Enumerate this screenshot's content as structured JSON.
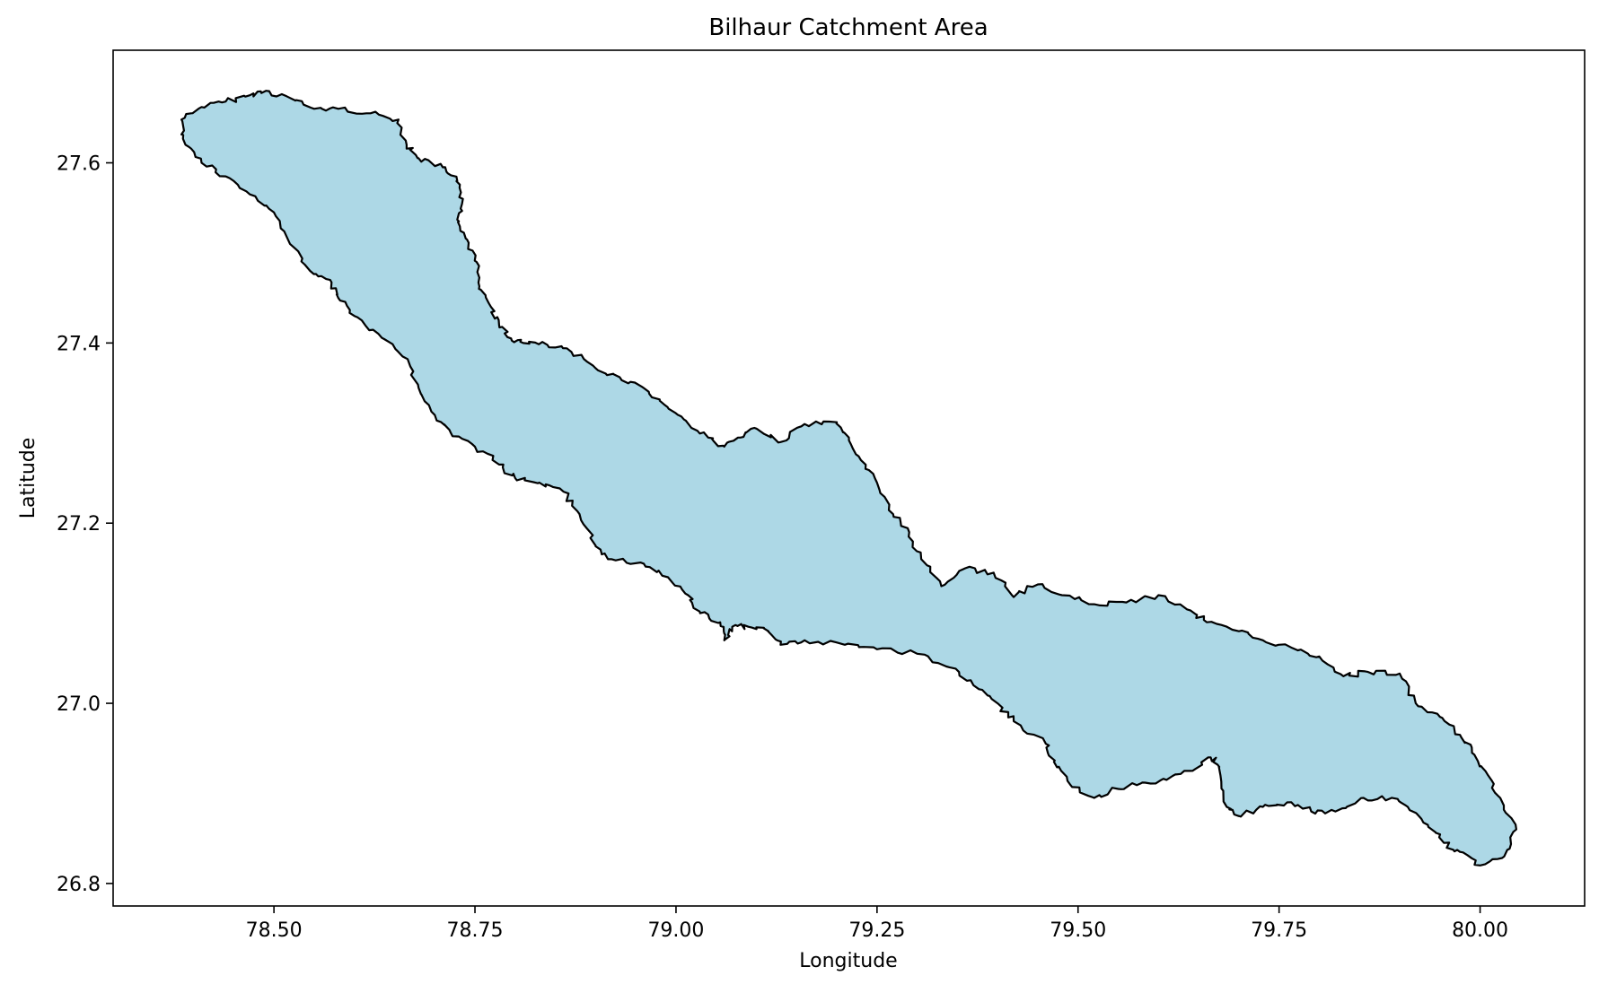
{
  "chart_data": {
    "type": "map",
    "title": "Bilhaur Catchment Area",
    "xlabel": "Longitude",
    "ylabel": "Latitude",
    "xlim": [
      78.3,
      80.13
    ],
    "ylim": [
      26.775,
      27.725
    ],
    "xticks": [
      78.5,
      78.75,
      79.0,
      79.25,
      79.5,
      79.75,
      80.0
    ],
    "xtick_labels": [
      "78.50",
      "78.75",
      "79.00",
      "79.25",
      "79.50",
      "79.75",
      "80.00"
    ],
    "yticks": [
      26.8,
      27.0,
      27.2,
      27.4,
      27.6
    ],
    "ytick_labels": [
      "26.8",
      "27.0",
      "27.2",
      "27.4",
      "27.6"
    ],
    "grid": false,
    "fill_color": "#add8e6",
    "edge_color": "#000000",
    "boundary": [
      [
        78.385,
        27.648
      ],
      [
        78.41,
        27.662
      ],
      [
        78.44,
        27.668
      ],
      [
        78.47,
        27.675
      ],
      [
        78.49,
        27.68
      ],
      [
        78.52,
        27.672
      ],
      [
        78.55,
        27.66
      ],
      [
        78.58,
        27.66
      ],
      [
        78.62,
        27.655
      ],
      [
        78.655,
        27.648
      ],
      [
        78.665,
        27.62
      ],
      [
        78.68,
        27.605
      ],
      [
        78.71,
        27.595
      ],
      [
        78.728,
        27.58
      ],
      [
        78.735,
        27.56
      ],
      [
        78.73,
        27.535
      ],
      [
        78.74,
        27.515
      ],
      [
        78.752,
        27.49
      ],
      [
        78.755,
        27.46
      ],
      [
        78.77,
        27.44
      ],
      [
        78.78,
        27.42
      ],
      [
        78.795,
        27.405
      ],
      [
        78.81,
        27.4
      ],
      [
        78.84,
        27.398
      ],
      [
        78.87,
        27.39
      ],
      [
        78.9,
        27.372
      ],
      [
        78.93,
        27.362
      ],
      [
        78.96,
        27.35
      ],
      [
        78.985,
        27.332
      ],
      [
        79.01,
        27.315
      ],
      [
        79.04,
        27.295
      ],
      [
        79.06,
        27.285
      ],
      [
        79.08,
        27.295
      ],
      [
        79.1,
        27.305
      ],
      [
        79.13,
        27.29
      ],
      [
        79.16,
        27.31
      ],
      [
        79.2,
        27.312
      ],
      [
        79.215,
        27.295
      ],
      [
        79.23,
        27.27
      ],
      [
        79.25,
        27.245
      ],
      [
        79.27,
        27.21
      ],
      [
        79.29,
        27.19
      ],
      [
        79.305,
        27.16
      ],
      [
        79.33,
        27.13
      ],
      [
        79.36,
        27.15
      ],
      [
        79.395,
        27.145
      ],
      [
        79.42,
        27.118
      ],
      [
        79.45,
        27.132
      ],
      [
        79.48,
        27.12
      ],
      [
        79.52,
        27.11
      ],
      [
        79.56,
        27.112
      ],
      [
        79.6,
        27.12
      ],
      [
        79.64,
        27.103
      ],
      [
        79.66,
        27.09
      ],
      [
        79.7,
        27.08
      ],
      [
        79.73,
        27.07
      ],
      [
        79.77,
        27.06
      ],
      [
        79.8,
        27.052
      ],
      [
        79.83,
        27.03
      ],
      [
        79.86,
        27.035
      ],
      [
        79.9,
        27.033
      ],
      [
        79.92,
        27.0
      ],
      [
        79.95,
        26.985
      ],
      [
        79.975,
        26.965
      ],
      [
        79.99,
        26.945
      ],
      [
        80.01,
        26.92
      ],
      [
        80.025,
        26.895
      ],
      [
        80.045,
        26.86
      ],
      [
        80.03,
        26.83
      ],
      [
        80.0,
        26.82
      ],
      [
        79.975,
        26.835
      ],
      [
        79.955,
        26.845
      ],
      [
        79.935,
        26.865
      ],
      [
        79.91,
        26.885
      ],
      [
        79.89,
        26.895
      ],
      [
        79.855,
        26.895
      ],
      [
        79.82,
        26.88
      ],
      [
        79.79,
        26.88
      ],
      [
        79.76,
        26.89
      ],
      [
        79.73,
        26.885
      ],
      [
        79.7,
        26.875
      ],
      [
        79.685,
        26.885
      ],
      [
        79.675,
        26.93
      ],
      [
        79.665,
        26.94
      ],
      [
        79.64,
        26.925
      ],
      [
        79.61,
        26.915
      ],
      [
        79.58,
        26.912
      ],
      [
        79.55,
        26.905
      ],
      [
        79.52,
        26.895
      ],
      [
        79.49,
        26.91
      ],
      [
        79.47,
        26.935
      ],
      [
        79.46,
        26.955
      ],
      [
        79.42,
        26.98
      ],
      [
        79.4,
        27.0
      ],
      [
        79.37,
        27.02
      ],
      [
        79.34,
        27.04
      ],
      [
        79.3,
        27.055
      ],
      [
        79.25,
        27.06
      ],
      [
        79.21,
        27.065
      ],
      [
        79.16,
        27.07
      ],
      [
        79.13,
        27.065
      ],
      [
        79.115,
        27.08
      ],
      [
        79.09,
        27.085
      ],
      [
        79.07,
        27.085
      ],
      [
        79.06,
        27.07
      ],
      [
        79.055,
        27.09
      ],
      [
        79.03,
        27.1
      ],
      [
        79.015,
        27.12
      ],
      [
        78.99,
        27.14
      ],
      [
        78.96,
        27.155
      ],
      [
        78.92,
        27.16
      ],
      [
        78.9,
        27.175
      ],
      [
        78.88,
        27.21
      ],
      [
        78.86,
        27.235
      ],
      [
        78.83,
        27.245
      ],
      [
        78.8,
        27.25
      ],
      [
        78.78,
        27.265
      ],
      [
        78.75,
        27.285
      ],
      [
        78.72,
        27.3
      ],
      [
        78.7,
        27.32
      ],
      [
        78.68,
        27.35
      ],
      [
        78.66,
        27.385
      ],
      [
        78.63,
        27.41
      ],
      [
        78.6,
        27.43
      ],
      [
        78.58,
        27.45
      ],
      [
        78.57,
        27.47
      ],
      [
        78.545,
        27.48
      ],
      [
        78.52,
        27.51
      ],
      [
        78.5,
        27.545
      ],
      [
        78.47,
        27.565
      ],
      [
        78.44,
        27.585
      ],
      [
        78.41,
        27.6
      ],
      [
        78.39,
        27.62
      ],
      [
        78.385,
        27.648
      ]
    ]
  }
}
